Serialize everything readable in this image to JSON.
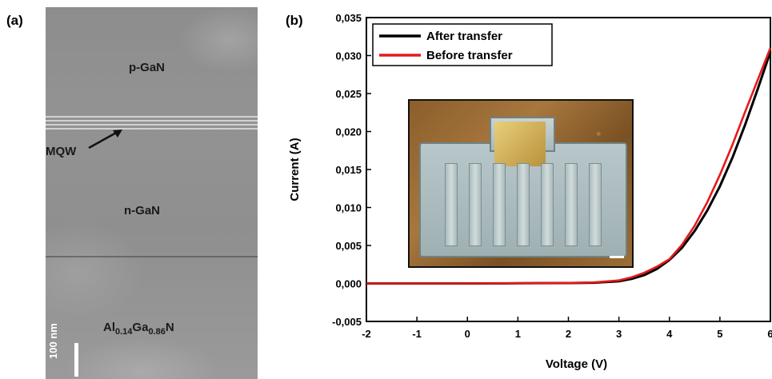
{
  "panels": {
    "a": {
      "label": "(a)"
    },
    "b": {
      "label": "(b)"
    }
  },
  "tem": {
    "layers": {
      "p_gan": "p-GaN",
      "mqw": "MQW",
      "n_gan": "n-GaN",
      "algan": {
        "base1": "Al",
        "sub1": "0.14",
        "base2": "Ga",
        "sub2": "0.86",
        "base3": "N"
      }
    },
    "scale_bar_label": "100 nm"
  },
  "chart_data": {
    "type": "line",
    "xlabel": "Voltage (V)",
    "ylabel": "Current (A)",
    "xlim": [
      -2,
      6
    ],
    "ylim": [
      -0.005,
      0.035
    ],
    "x_ticks": [
      -2,
      -1,
      0,
      1,
      2,
      3,
      4,
      5,
      6
    ],
    "x_tick_labels": [
      "-2",
      "-1",
      "0",
      "1",
      "2",
      "3",
      "4",
      "5",
      "6"
    ],
    "y_ticks": [
      -0.005,
      0,
      0.005,
      0.01,
      0.015,
      0.02,
      0.025,
      0.03,
      0.035
    ],
    "y_tick_labels": [
      "-0,005",
      "0,000",
      "0,005",
      "0,010",
      "0,015",
      "0,020",
      "0,025",
      "0,030",
      "0,035"
    ],
    "grid": false,
    "legend_position": "top-left",
    "series": [
      {
        "name": "After transfer",
        "color": "#000000",
        "x": [
          -2,
          -1,
          0,
          1,
          2,
          2.5,
          3,
          3.25,
          3.5,
          3.75,
          4,
          4.25,
          4.5,
          4.75,
          5,
          5.25,
          5.5,
          5.75,
          6
        ],
        "y": [
          0,
          0,
          0,
          2e-05,
          5e-05,
          0.0001,
          0.00028,
          0.0006,
          0.0011,
          0.0019,
          0.0031,
          0.0047,
          0.0069,
          0.0096,
          0.0128,
          0.0166,
          0.0209,
          0.0256,
          0.0305
        ]
      },
      {
        "name": "Before transfer",
        "color": "#e41a1c",
        "x": [
          -2,
          -1,
          0,
          1,
          2,
          2.5,
          3,
          3.25,
          3.5,
          3.75,
          4,
          4.25,
          4.5,
          4.75,
          5,
          5.25,
          5.5,
          5.75,
          6
        ],
        "y": [
          0,
          0,
          0,
          2e-05,
          6e-05,
          0.00014,
          0.0004,
          0.0008,
          0.0014,
          0.0022,
          0.0032,
          0.0051,
          0.0076,
          0.0107,
          0.0143,
          0.0183,
          0.0226,
          0.0268,
          0.031
        ]
      }
    ]
  }
}
